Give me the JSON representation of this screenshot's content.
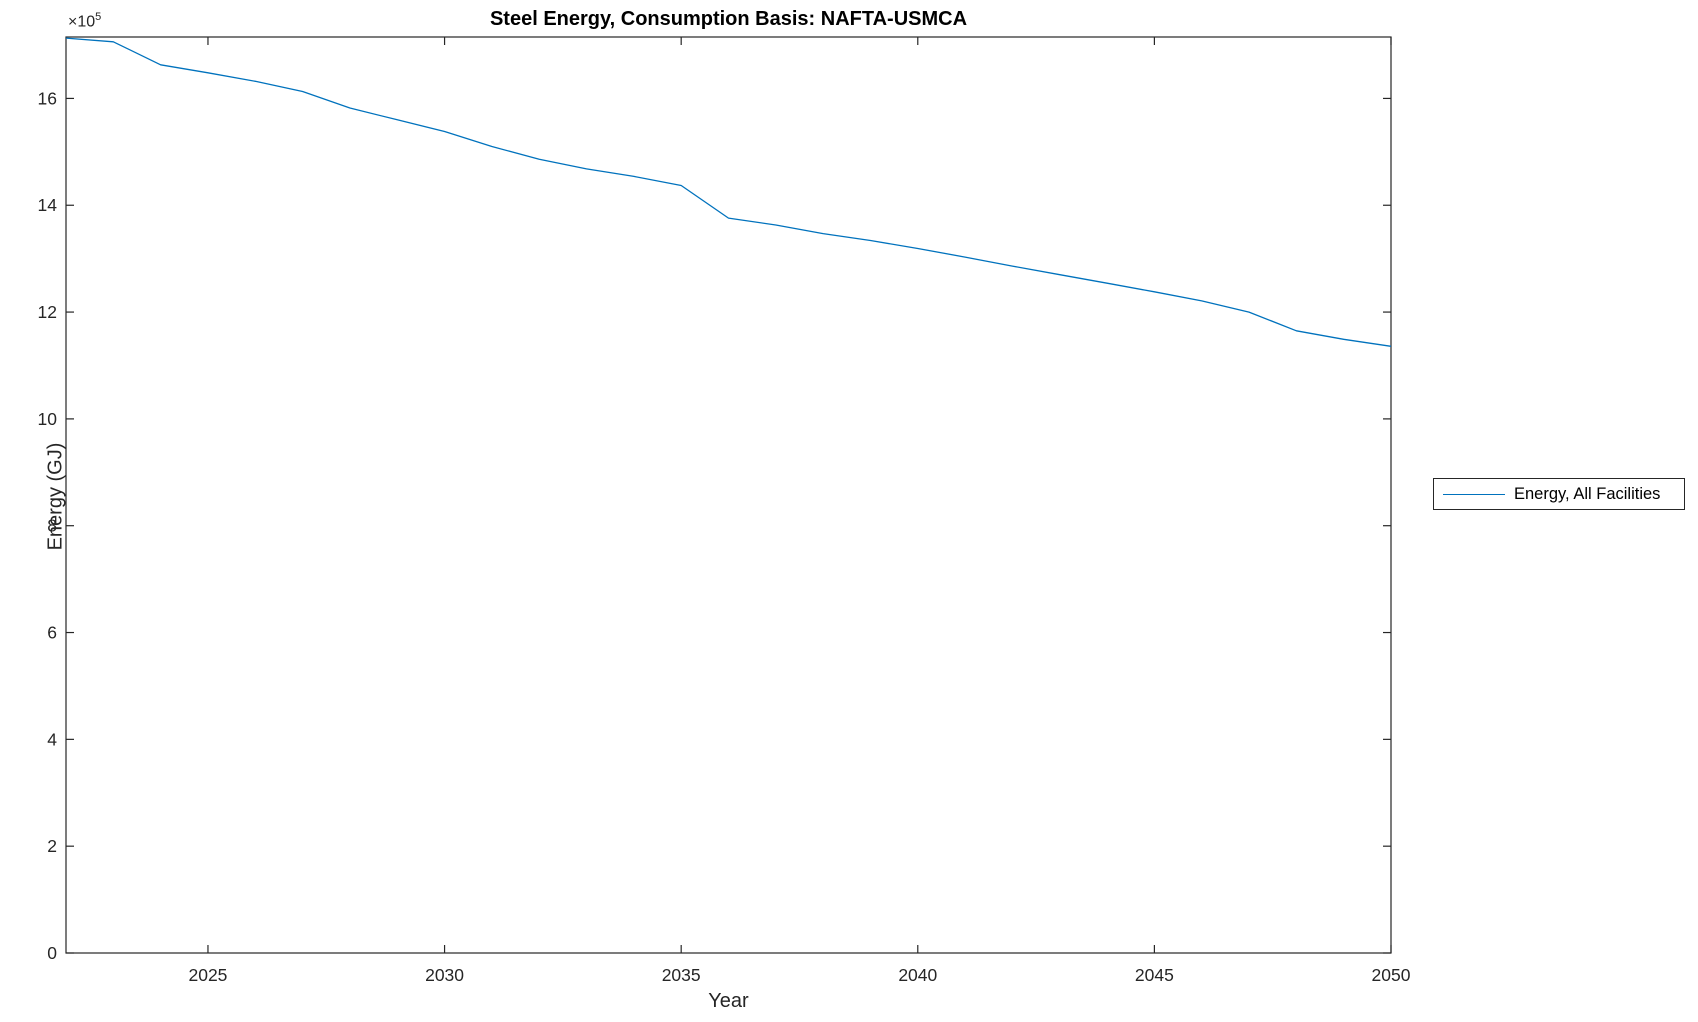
{
  "chart_data": {
    "type": "line",
    "title": "Steel Energy, Consumption Basis: NAFTA-USMCA",
    "xlabel": "Year",
    "ylabel": "Energy (GJ)",
    "y_multiplier": {
      "base": "×10",
      "exp": "5"
    },
    "xlim": [
      2022,
      2050
    ],
    "ylim": [
      0,
      1715000
    ],
    "x_ticks": [
      2025,
      2030,
      2035,
      2040,
      2045,
      2050
    ],
    "y_ticks": [
      0,
      200000,
      400000,
      600000,
      800000,
      1000000,
      1200000,
      1400000,
      1600000
    ],
    "y_tick_labels": [
      "0",
      "2",
      "4",
      "6",
      "8",
      "10",
      "12",
      "14",
      "16"
    ],
    "grid": false,
    "axis_color": "#262626",
    "legend_position": "right-outside",
    "series": [
      {
        "name": "Energy, All Facilities",
        "color": "#0072BD",
        "x": [
          2022,
          2023,
          2024,
          2025,
          2026,
          2027,
          2028,
          2029,
          2030,
          2031,
          2032,
          2033,
          2034,
          2035,
          2036,
          2037,
          2038,
          2039,
          2040,
          2041,
          2042,
          2043,
          2044,
          2045,
          2046,
          2047,
          2048,
          2049,
          2050
        ],
        "values": [
          1713000,
          1706000,
          1663000,
          1648000,
          1632000,
          1613000,
          1582000,
          1560000,
          1538000,
          1510000,
          1486000,
          1468000,
          1454000,
          1437000,
          1376000,
          1363000,
          1347000,
          1334000,
          1319000,
          1303000,
          1286000,
          1270000,
          1254000,
          1238000,
          1221000,
          1200000,
          1165000,
          1149000,
          1136000
        ]
      }
    ]
  }
}
